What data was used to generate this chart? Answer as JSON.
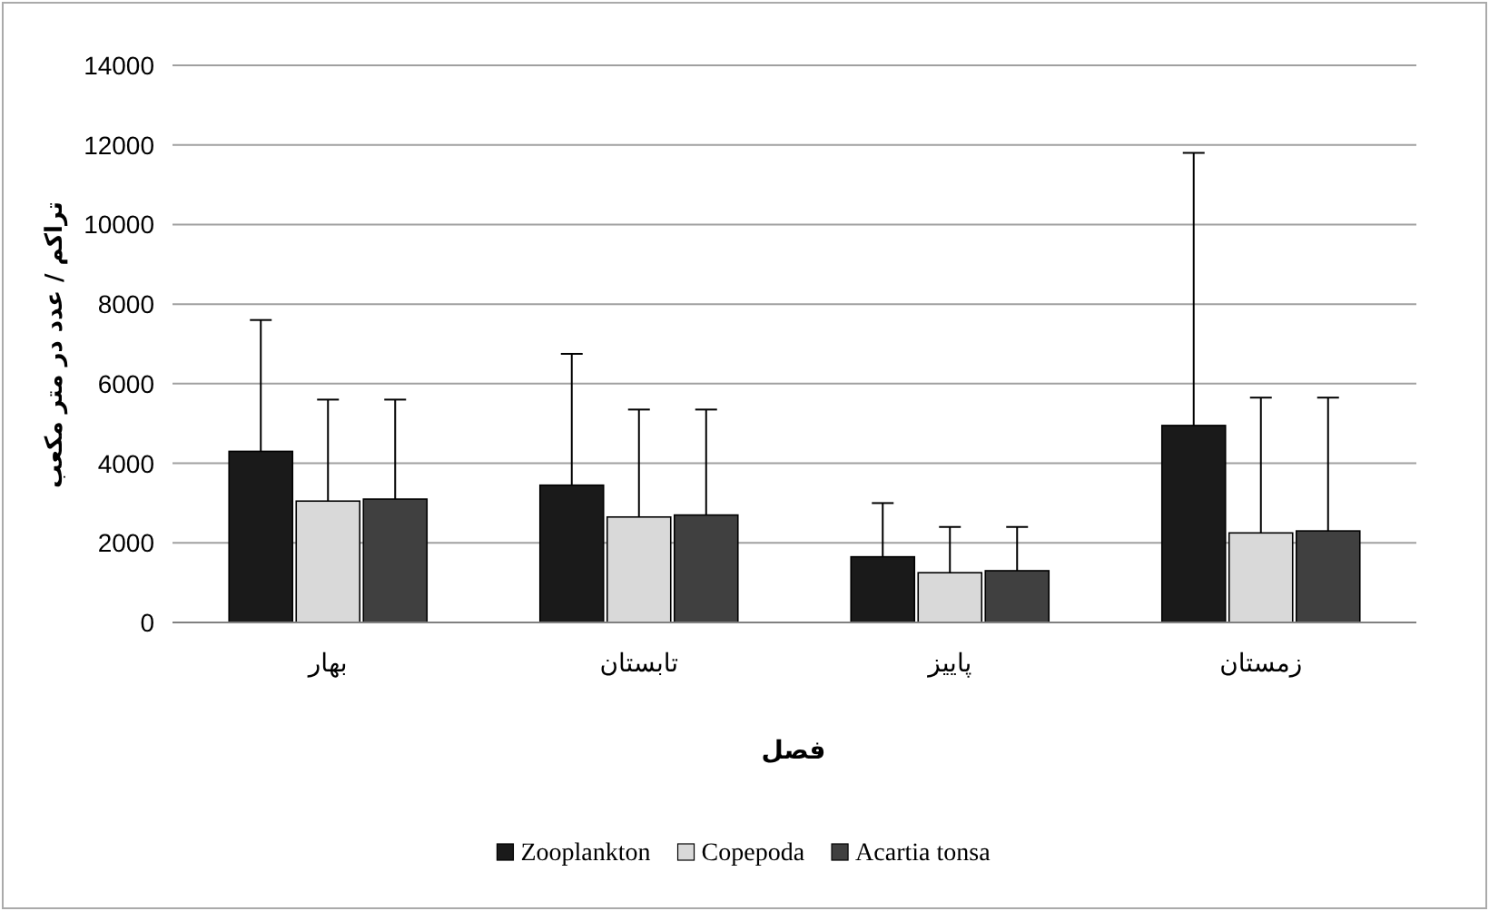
{
  "chart_data": {
    "type": "bar",
    "xlabel": "فصل",
    "ylabel": "تراکم / عدد در متر مکعب",
    "categories": [
      "بهار",
      "تابستان",
      "پاییز",
      "زمستان"
    ],
    "series": [
      {
        "name": "Zooplankton",
        "color": "#1a1a1a",
        "values": [
          4300,
          3450,
          1650,
          4950
        ],
        "errors": [
          [
            4300,
            7600
          ],
          [
            3450,
            6750
          ],
          [
            1650,
            3000
          ],
          [
            4950,
            11800
          ]
        ]
      },
      {
        "name": "Copepoda",
        "color": "#d9d9d9",
        "values": [
          3050,
          2650,
          1250,
          2250
        ],
        "errors": [
          [
            3050,
            5600
          ],
          [
            2650,
            5350
          ],
          [
            1250,
            2400
          ],
          [
            2250,
            5650
          ]
        ]
      },
      {
        "name": "Acartia tonsa",
        "color": "#404040",
        "values": [
          3100,
          2700,
          1300,
          2300
        ],
        "errors": [
          [
            3100,
            5600
          ],
          [
            2700,
            5350
          ],
          [
            1300,
            2400
          ],
          [
            2300,
            5650
          ]
        ]
      }
    ],
    "ylim": [
      0,
      14000
    ],
    "yticks": [
      0,
      2000,
      4000,
      6000,
      8000,
      10000,
      12000,
      14000
    ],
    "grid": "y",
    "legend": "bottom"
  }
}
